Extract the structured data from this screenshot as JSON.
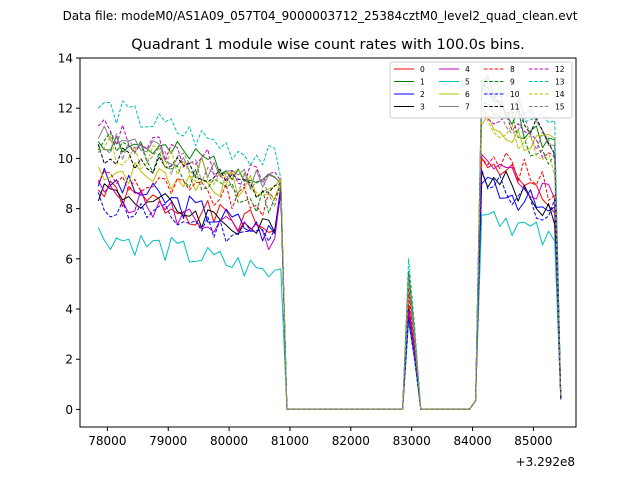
{
  "suptitle": "Data file: modeM0/AS1A09_057T04_9000003712_25384cztM0_level2_quad_clean.evt",
  "chart_data": {
    "type": "line",
    "title": "Quadrant 1 module wise count rates with 100.0s bins.",
    "xlabel": "",
    "ylabel": "",
    "x_offset_label": "+3.292e8",
    "xlim": [
      77550,
      85700
    ],
    "ylim": [
      -0.7,
      14
    ],
    "x_ticks": [
      78000,
      79000,
      80000,
      81000,
      82000,
      83000,
      84000,
      85000
    ],
    "x_tick_labels": [
      "78000",
      "79000",
      "80000",
      "81000",
      "82000",
      "83000",
      "84000",
      "85000"
    ],
    "y_ticks": [
      0,
      2,
      4,
      6,
      8,
      10,
      12,
      14
    ],
    "y_tick_labels": [
      "0",
      "2",
      "4",
      "6",
      "8",
      "10",
      "12",
      "14"
    ],
    "grid": false,
    "legend_position": "top-right",
    "segments": [
      {
        "x_start": 77850,
        "x_end": 80750,
        "step": 100
      },
      {
        "x_start": 80850,
        "x_end": 80850,
        "step": 100
      },
      {
        "x_start": 80950,
        "x_end": 82750,
        "step": 100
      },
      {
        "x_start": 82850,
        "x_end": 83050,
        "step": 100
      },
      {
        "x_start": 83150,
        "x_end": 83950,
        "step": 100
      },
      {
        "x_start": 84050,
        "x_end": 84050,
        "step": 100
      },
      {
        "x_start": 84150,
        "x_end": 85350,
        "step": 100
      },
      {
        "x_start": 85450,
        "x_end": 85450,
        "step": 100
      }
    ],
    "series": [
      {
        "name": "0",
        "color": "#ff0000",
        "dash": false,
        "pre": [
          8.7,
          7.2
        ],
        "drop": 8.9,
        "mid": 4.2,
        "high": [
          10.0,
          8.0
        ],
        "tail": 0.4,
        "seed": 1
      },
      {
        "name": "1",
        "color": "#008000",
        "dash": false,
        "pre": [
          10.8,
          9.3
        ],
        "drop": 9.0,
        "mid": 5.5,
        "high": [
          12.5,
          10.6
        ],
        "tail": 0.5,
        "seed": 2
      },
      {
        "name": "2",
        "color": "#0000ff",
        "dash": false,
        "pre": [
          9.2,
          7.0
        ],
        "drop": 8.8,
        "mid": 4.0,
        "high": [
          9.4,
          7.6
        ],
        "tail": 0.4,
        "seed": 3
      },
      {
        "name": "3",
        "color": "#000000",
        "dash": false,
        "pre": [
          8.8,
          7.0
        ],
        "drop": 8.6,
        "mid": 3.8,
        "high": [
          9.5,
          7.8
        ],
        "tail": 0.4,
        "seed": 4
      },
      {
        "name": "4",
        "color": "#bf00bf",
        "dash": false,
        "pre": [
          8.7,
          6.7
        ],
        "drop": 8.7,
        "mid": 3.9,
        "high": [
          9.8,
          8.5
        ],
        "tail": 0.4,
        "seed": 5
      },
      {
        "name": "5",
        "color": "#00bfbf",
        "dash": false,
        "pre": [
          7.0,
          5.4
        ],
        "drop": 5.6,
        "mid": 3.5,
        "high": [
          8.2,
          6.5
        ],
        "tail": 0.4,
        "seed": 6
      },
      {
        "name": "6",
        "color": "#bfbf00",
        "dash": false,
        "pre": [
          9.6,
          8.7
        ],
        "drop": 9.2,
        "mid": 4.8,
        "high": [
          11.4,
          10.3
        ],
        "tail": 0.5,
        "seed": 7
      },
      {
        "name": "7",
        "color": "#808080",
        "dash": false,
        "pre": [
          10.9,
          9.0
        ],
        "drop": 9.0,
        "mid": 5.0,
        "high": [
          12.8,
          10.9
        ],
        "tail": 0.5,
        "seed": 8
      },
      {
        "name": "8",
        "color": "#ff0000",
        "dash": true,
        "pre": [
          9.3,
          8.1
        ],
        "drop": 8.9,
        "mid": 4.6,
        "high": [
          10.5,
          8.6
        ],
        "tail": 0.4,
        "seed": 9
      },
      {
        "name": "9",
        "color": "#008000",
        "dash": true,
        "pre": [
          10.8,
          8.1
        ],
        "drop": 9.0,
        "mid": 5.2,
        "high": [
          12.3,
          9.9
        ],
        "tail": 0.5,
        "seed": 10
      },
      {
        "name": "10",
        "color": "#0000ff",
        "dash": true,
        "pre": [
          8.2,
          6.8
        ],
        "drop": 8.7,
        "mid": 3.6,
        "high": [
          9.3,
          7.8
        ],
        "tail": 0.4,
        "seed": 11
      },
      {
        "name": "11",
        "color": "#000000",
        "dash": true,
        "pre": [
          10.3,
          8.5
        ],
        "drop": 9.0,
        "mid": 5.0,
        "high": [
          13.2,
          10.5
        ],
        "tail": 0.5,
        "seed": 12
      },
      {
        "name": "12",
        "color": "#bf00bf",
        "dash": true,
        "pre": [
          11.2,
          9.0
        ],
        "drop": 9.1,
        "mid": 5.0,
        "high": [
          11.9,
          10.1
        ],
        "tail": 0.5,
        "seed": 13
      },
      {
        "name": "13",
        "color": "#00bfbf",
        "dash": true,
        "pre": [
          12.1,
          9.9
        ],
        "drop": 9.2,
        "mid": 6.0,
        "high": [
          12.9,
          11.2
        ],
        "tail": 0.5,
        "seed": 14
      },
      {
        "name": "14",
        "color": "#bfbf00",
        "dash": true,
        "pre": [
          10.5,
          8.9
        ],
        "drop": 9.2,
        "mid": 5.1,
        "high": [
          11.6,
          9.9
        ],
        "tail": 0.5,
        "seed": 15
      },
      {
        "name": "15",
        "color": "#808080",
        "dash": true,
        "pre": [
          10.7,
          8.6
        ],
        "drop": 9.0,
        "mid": 5.3,
        "high": [
          12.3,
          10.3
        ],
        "tail": 0.5,
        "seed": 16
      }
    ]
  }
}
